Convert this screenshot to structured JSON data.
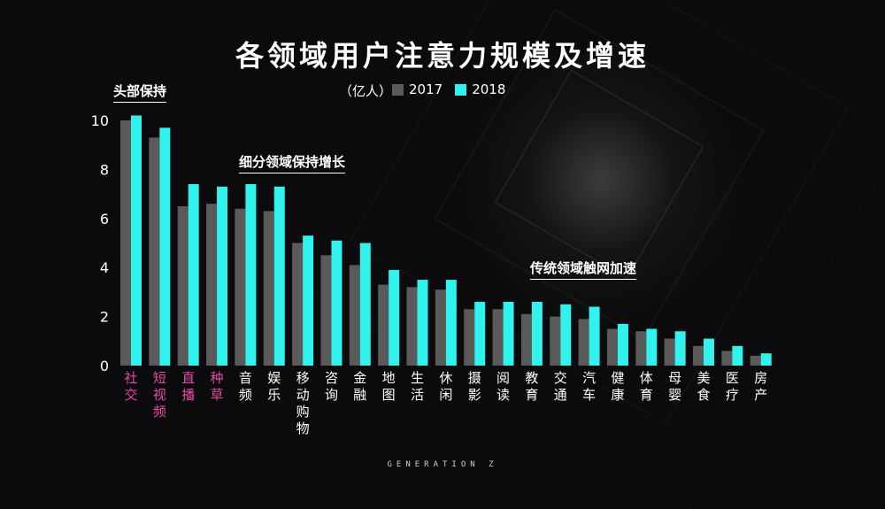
{
  "title": "各领域用户注意力规模及增速",
  "unit": "（亿人）",
  "footer": "GENERATION Z",
  "annotations": {
    "head": "头部保持",
    "subdivided": "细分领域保持增长",
    "traditional": "传统领域触网加速"
  },
  "colors": {
    "s2017": "#5a5a5a",
    "s2018": "#2ff3ec",
    "highlight_label": "#e84aa8",
    "normal_label": "#ffffff"
  },
  "chart_data": {
    "type": "bar",
    "title": "各领域用户注意力规模及增速",
    "ylabel": "（亿人）",
    "ylim": [
      0,
      10
    ],
    "yticks": [
      0,
      2,
      4,
      6,
      8,
      10
    ],
    "grid": false,
    "legend_position": "top",
    "categories": [
      "社交",
      "短视频",
      "直播",
      "种草",
      "音频",
      "娱乐",
      "移动购物",
      "咨询",
      "金融",
      "地图",
      "生活",
      "休闲",
      "摄影",
      "阅读",
      "教育",
      "交通",
      "汽车",
      "健康",
      "体育",
      "母婴",
      "美食",
      "医疗",
      "房产"
    ],
    "highlighted_categories": [
      "社交",
      "短视频",
      "直播",
      "种草"
    ],
    "series": [
      {
        "name": "2017",
        "values": [
          10.0,
          9.3,
          6.5,
          6.6,
          6.4,
          6.3,
          5.0,
          4.5,
          4.1,
          3.3,
          3.2,
          3.1,
          2.3,
          2.3,
          2.1,
          2.0,
          1.9,
          1.5,
          1.4,
          1.1,
          0.8,
          0.6,
          0.4
        ]
      },
      {
        "name": "2018",
        "values": [
          10.2,
          9.7,
          7.4,
          7.3,
          7.4,
          7.3,
          5.3,
          5.1,
          5.0,
          3.9,
          3.5,
          3.5,
          2.6,
          2.6,
          2.6,
          2.5,
          2.4,
          1.7,
          1.5,
          1.4,
          1.1,
          0.8,
          0.5
        ]
      }
    ]
  }
}
